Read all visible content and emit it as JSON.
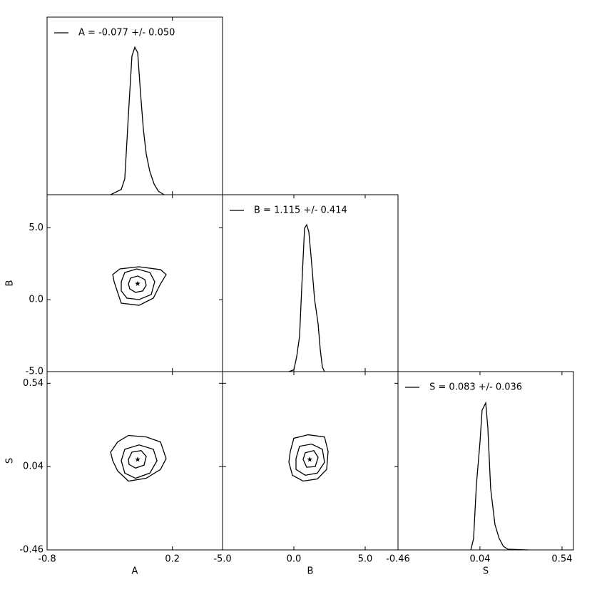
{
  "chart_data": [
    {
      "type": "line",
      "legend": "upper left",
      "x": [
        -0.293,
        -0.208,
        -0.18,
        -0.151,
        -0.123,
        -0.1,
        -0.077,
        -0.054,
        -0.032,
        -0.009,
        0.02,
        0.054,
        0.088,
        0.133
      ],
      "series": [
        {
          "name": "A = -0.077 +/- 0.050",
          "color": "#000000",
          "values": [
            0,
            0.03,
            0.09,
            0.45,
            0.78,
            0.83,
            0.8,
            0.57,
            0.37,
            0.23,
            0.13,
            0.06,
            0.02,
            0
          ]
        }
      ],
      "xlim": [
        -0.8,
        0.6
      ],
      "xticks": [
        -0.8,
        0.2
      ],
      "ylim": [
        0,
        1
      ]
    },
    {
      "type": "contour",
      "color": "#000000",
      "ylabel": "B",
      "xlim": [
        -0.8,
        0.6
      ],
      "xticks": [
        -0.8,
        0.2
      ],
      "ylim": [
        -5,
        7.3
      ],
      "yticks": [
        {
          "value": -5,
          "label": "-5.0"
        },
        {
          "value": 0,
          "label": "0.0"
        },
        {
          "value": 5,
          "label": "5.0"
        }
      ],
      "contours": [
        {
          "x": [
            -0.151,
            -0.134,
            -0.077,
            -0.02,
            -0.009,
            -0.037,
            -0.094,
            -0.14
          ],
          "y": [
            1.1,
            1.5,
            1.65,
            1.4,
            1.0,
            0.61,
            0.51,
            0.75
          ]
        },
        {
          "x": [
            -0.208,
            -0.18,
            -0.083,
            0.02,
            0.059,
            0.031,
            -0.066,
            -0.163,
            -0.208
          ],
          "y": [
            1.25,
            1.89,
            2.14,
            1.89,
            1.25,
            0.36,
            0.01,
            0.11,
            0.61
          ]
        },
        {
          "x": [
            -0.276,
            -0.219,
            -0.066,
            0.105,
            0.15,
            0.105,
            0.048,
            -0.066,
            -0.208,
            -0.237,
            -0.265
          ],
          "y": [
            1.75,
            2.14,
            2.29,
            2.09,
            1.75,
            1.1,
            0.11,
            -0.39,
            -0.24,
            0.51,
            1.25
          ]
        }
      ],
      "marker": {
        "x": -0.077,
        "y": 1.115
      }
    },
    {
      "type": "line",
      "legend": "upper left",
      "x": [
        -0.35,
        0.0,
        0.2,
        0.4,
        0.6,
        0.75,
        0.9,
        1.05,
        1.25,
        1.45,
        1.7,
        1.85,
        2.0,
        2.15
      ],
      "series": [
        {
          "name": "B = 1.115 +/- 0.414",
          "color": "#000000",
          "values": [
            0,
            0.01,
            0.085,
            0.2,
            0.56,
            0.81,
            0.83,
            0.79,
            0.61,
            0.41,
            0.27,
            0.125,
            0.025,
            0
          ]
        }
      ],
      "xlim": [
        -5,
        7.3
      ],
      "xticks": [
        -5,
        0,
        5
      ],
      "ylim": [
        0,
        1
      ]
    },
    {
      "type": "contour",
      "color": "#000000",
      "xlabel": "A",
      "ylabel": "S",
      "xlim": [
        -0.8,
        0.6
      ],
      "xticks": [
        -0.8,
        0.2
      ],
      "ylim": [
        -0.46,
        0.61
      ],
      "yticks": [
        -0.46,
        0.04,
        0.54
      ],
      "contours": [
        {
          "x": [
            -0.151,
            -0.123,
            -0.049,
            -0.009,
            -0.026,
            -0.094,
            -0.146
          ],
          "y": [
            0.083,
            0.127,
            0.136,
            0.101,
            0.049,
            0.031,
            0.053
          ]
        },
        {
          "x": [
            -0.208,
            -0.18,
            -0.066,
            0.048,
            0.077,
            0.02,
            -0.094,
            -0.18
          ],
          "y": [
            0.075,
            0.144,
            0.17,
            0.144,
            0.075,
            0.001,
            -0.03,
            0.001
          ]
        },
        {
          "x": [
            -0.293,
            -0.237,
            -0.151,
            -0.009,
            0.105,
            0.15,
            0.105,
            -0.009,
            -0.151,
            -0.237,
            -0.276
          ],
          "y": [
            0.127,
            0.188,
            0.227,
            0.218,
            0.188,
            0.088,
            0.023,
            -0.03,
            -0.047,
            0.014,
            0.075
          ]
        }
      ],
      "marker": {
        "x": -0.077,
        "y": 0.083
      }
    },
    {
      "type": "contour",
      "color": "#000000",
      "xlabel": "B",
      "xlim": [
        -5,
        7.3
      ],
      "xticks": [
        {
          "value": -5,
          "label": "-5.0"
        },
        {
          "value": 0,
          "label": "0.0"
        },
        {
          "value": 5,
          "label": "5.0"
        }
      ],
      "ylim": [
        -0.46,
        0.61
      ],
      "yticks": [
        -0.46,
        0.04,
        0.54
      ],
      "contours": [
        {
          "x": [
            0.65,
            0.8,
            1.4,
            1.7,
            1.5,
            0.9
          ],
          "y": [
            0.083,
            0.123,
            0.136,
            0.096,
            0.04,
            0.036
          ]
        },
        {
          "x": [
            0.15,
            0.4,
            1.25,
            2.0,
            2.15,
            1.65,
            0.8,
            0.15
          ],
          "y": [
            0.088,
            0.162,
            0.175,
            0.144,
            0.066,
            0.001,
            -0.012,
            0.023
          ]
        },
        {
          "x": [
            -0.25,
            0.0,
            1.0,
            2.15,
            2.4,
            2.3,
            1.65,
            0.65,
            -0.1,
            -0.35
          ],
          "y": [
            0.131,
            0.21,
            0.231,
            0.218,
            0.131,
            0.023,
            -0.034,
            -0.047,
            -0.012,
            0.066
          ]
        }
      ],
      "marker": {
        "x": 1.115,
        "y": 0.083
      }
    },
    {
      "type": "line",
      "legend": "upper left",
      "xlabel": "S",
      "x": [
        -0.016,
        0.001,
        0.018,
        0.04,
        0.053,
        0.075,
        0.088,
        0.105,
        0.131,
        0.157,
        0.183,
        0.21,
        0.33
      ],
      "series": [
        {
          "name": "S = 0.083 +/- 0.036",
          "color": "#000000",
          "values": [
            0,
            0.064,
            0.364,
            0.604,
            0.784,
            0.824,
            0.684,
            0.344,
            0.144,
            0.064,
            0.02,
            0.004,
            0
          ]
        }
      ],
      "xlim": [
        -0.46,
        0.61
      ],
      "xticks": [
        -0.46,
        0.04,
        0.54
      ],
      "ylim": [
        0,
        1
      ]
    }
  ]
}
